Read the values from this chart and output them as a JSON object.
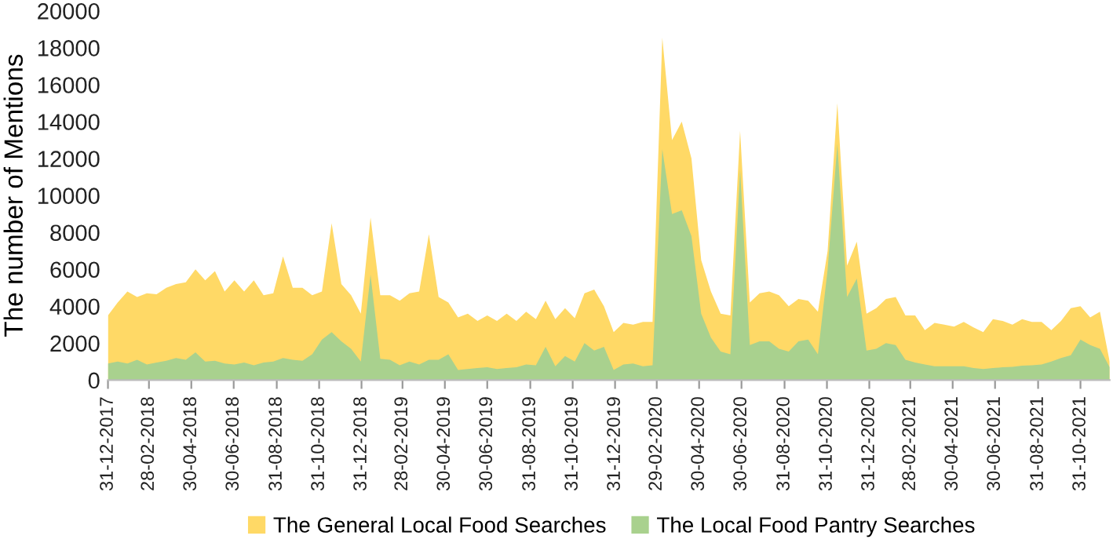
{
  "chart_data": {
    "type": "area",
    "ylabel": "The number of Mentions",
    "x": [
      "2017-12-31",
      "2018-01-14",
      "2018-01-28",
      "2018-02-11",
      "2018-02-25",
      "2018-03-11",
      "2018-03-25",
      "2018-04-08",
      "2018-04-22",
      "2018-05-06",
      "2018-05-20",
      "2018-06-03",
      "2018-06-17",
      "2018-07-01",
      "2018-07-15",
      "2018-07-29",
      "2018-08-12",
      "2018-08-26",
      "2018-09-09",
      "2018-09-23",
      "2018-10-07",
      "2018-10-21",
      "2018-11-04",
      "2018-11-18",
      "2018-12-02",
      "2018-12-16",
      "2018-12-30",
      "2019-01-13",
      "2019-01-27",
      "2019-02-10",
      "2019-02-24",
      "2019-03-10",
      "2019-03-24",
      "2019-04-07",
      "2019-04-21",
      "2019-05-05",
      "2019-05-19",
      "2019-06-02",
      "2019-06-16",
      "2019-06-30",
      "2019-07-14",
      "2019-07-28",
      "2019-08-11",
      "2019-08-25",
      "2019-09-08",
      "2019-09-22",
      "2019-10-06",
      "2019-10-20",
      "2019-11-03",
      "2019-11-17",
      "2019-12-01",
      "2019-12-15",
      "2019-12-29",
      "2020-01-12",
      "2020-01-26",
      "2020-02-09",
      "2020-02-23",
      "2020-03-08",
      "2020-03-22",
      "2020-04-05",
      "2020-04-19",
      "2020-05-03",
      "2020-05-17",
      "2020-05-31",
      "2020-06-14",
      "2020-06-28",
      "2020-07-12",
      "2020-07-26",
      "2020-08-09",
      "2020-08-23",
      "2020-09-06",
      "2020-09-20",
      "2020-10-04",
      "2020-10-18",
      "2020-11-01",
      "2020-11-15",
      "2020-11-29",
      "2020-12-13",
      "2020-12-27",
      "2021-01-10",
      "2021-01-24",
      "2021-02-07",
      "2021-02-21",
      "2021-03-07",
      "2021-03-21",
      "2021-04-04",
      "2021-04-18",
      "2021-05-02",
      "2021-05-16",
      "2021-05-30",
      "2021-06-13",
      "2021-06-27",
      "2021-07-11",
      "2021-07-25",
      "2021-08-08",
      "2021-08-22",
      "2021-09-05",
      "2021-09-19",
      "2021-10-03",
      "2021-10-17",
      "2021-10-31",
      "2021-11-14",
      "2021-11-28",
      "2021-12-12"
    ],
    "series": [
      {
        "name": "The General Local Food Searches",
        "color": "#ffd966",
        "values": [
          3500,
          4200,
          4800,
          4500,
          4700,
          4650,
          5000,
          5200,
          5300,
          6000,
          5400,
          5900,
          4800,
          5400,
          4800,
          5400,
          4600,
          4700,
          6700,
          5000,
          5000,
          4600,
          4800,
          8500,
          5200,
          4600,
          3600,
          8800,
          4600,
          4600,
          4300,
          4700,
          4800,
          7900,
          4500,
          4200,
          3400,
          3600,
          3200,
          3500,
          3200,
          3600,
          3200,
          3700,
          3300,
          4300,
          3300,
          3900,
          3350,
          4700,
          4900,
          4000,
          2600,
          3100,
          3000,
          3150,
          3150,
          18550,
          13000,
          14000,
          12000,
          6500,
          4800,
          3600,
          3500,
          13500,
          4200,
          4700,
          4800,
          4600,
          4000,
          4400,
          4300,
          3700,
          7000,
          15000,
          6200,
          7500,
          3600,
          3900,
          4400,
          4500,
          3500,
          3500,
          2700,
          3100,
          3000,
          2900,
          3150,
          2850,
          2600,
          3300,
          3200,
          3000,
          3300,
          3150,
          3150,
          2700,
          3200,
          3900,
          4000,
          3400,
          3700,
          1000
        ]
      },
      {
        "name": "The Local Food Pantry Searches",
        "color": "#a9d18e",
        "values": [
          900,
          1000,
          900,
          1100,
          850,
          950,
          1050,
          1200,
          1100,
          1500,
          1000,
          1050,
          900,
          850,
          950,
          800,
          950,
          1000,
          1200,
          1100,
          1050,
          1400,
          2200,
          2600,
          2100,
          1700,
          1000,
          5700,
          1150,
          1100,
          800,
          1000,
          850,
          1100,
          1100,
          1400,
          550,
          600,
          650,
          700,
          600,
          650,
          700,
          850,
          800,
          1800,
          750,
          1300,
          1000,
          2000,
          1600,
          1800,
          550,
          850,
          900,
          750,
          800,
          12500,
          9000,
          9200,
          7800,
          3600,
          2300,
          1550,
          1400,
          11400,
          1900,
          2100,
          2100,
          1700,
          1550,
          2100,
          2200,
          1400,
          6000,
          12800,
          4500,
          5500,
          1600,
          1700,
          2000,
          1900,
          1100,
          950,
          850,
          750,
          750,
          750,
          750,
          650,
          600,
          650,
          700,
          720,
          780,
          800,
          850,
          1000,
          1200,
          1350,
          2200,
          1900,
          1700,
          700
        ]
      }
    ],
    "xlim": [
      "2017-12-31",
      "2021-12-12"
    ],
    "xticks": [
      {
        "value": "2017-12-31",
        "label": "31-12-2017"
      },
      {
        "value": "2018-02-28",
        "label": "28-02-2018"
      },
      {
        "value": "2018-04-30",
        "label": "30-04-2018"
      },
      {
        "value": "2018-06-30",
        "label": "30-06-2018"
      },
      {
        "value": "2018-08-31",
        "label": "31-08-2018"
      },
      {
        "value": "2018-10-31",
        "label": "31-10-2018"
      },
      {
        "value": "2018-12-31",
        "label": "31-12-2018"
      },
      {
        "value": "2019-02-28",
        "label": "28-02-2019"
      },
      {
        "value": "2019-04-30",
        "label": "30-04-2019"
      },
      {
        "value": "2019-06-30",
        "label": "30-06-2019"
      },
      {
        "value": "2019-08-31",
        "label": "31-08-2019"
      },
      {
        "value": "2019-10-31",
        "label": "31-10-2019"
      },
      {
        "value": "2019-12-31",
        "label": "31-12-2019"
      },
      {
        "value": "2020-02-29",
        "label": "29-02-2020"
      },
      {
        "value": "2020-04-30",
        "label": "30-04-2020"
      },
      {
        "value": "2020-06-30",
        "label": "30-06-2020"
      },
      {
        "value": "2020-08-31",
        "label": "31-08-2020"
      },
      {
        "value": "2020-10-31",
        "label": "31-10-2020"
      },
      {
        "value": "2020-12-31",
        "label": "31-12-2020"
      },
      {
        "value": "2021-02-28",
        "label": "28-02-2021"
      },
      {
        "value": "2021-04-30",
        "label": "30-04-2021"
      },
      {
        "value": "2021-06-30",
        "label": "30-06-2021"
      },
      {
        "value": "2021-08-31",
        "label": "31-08-2021"
      },
      {
        "value": "2021-10-31",
        "label": "31-10-2021"
      }
    ],
    "ylim": [
      0,
      20000
    ],
    "yticks": [
      0,
      2000,
      4000,
      6000,
      8000,
      10000,
      12000,
      14000,
      16000,
      18000,
      20000
    ],
    "grid": false,
    "legend": "bottom"
  }
}
